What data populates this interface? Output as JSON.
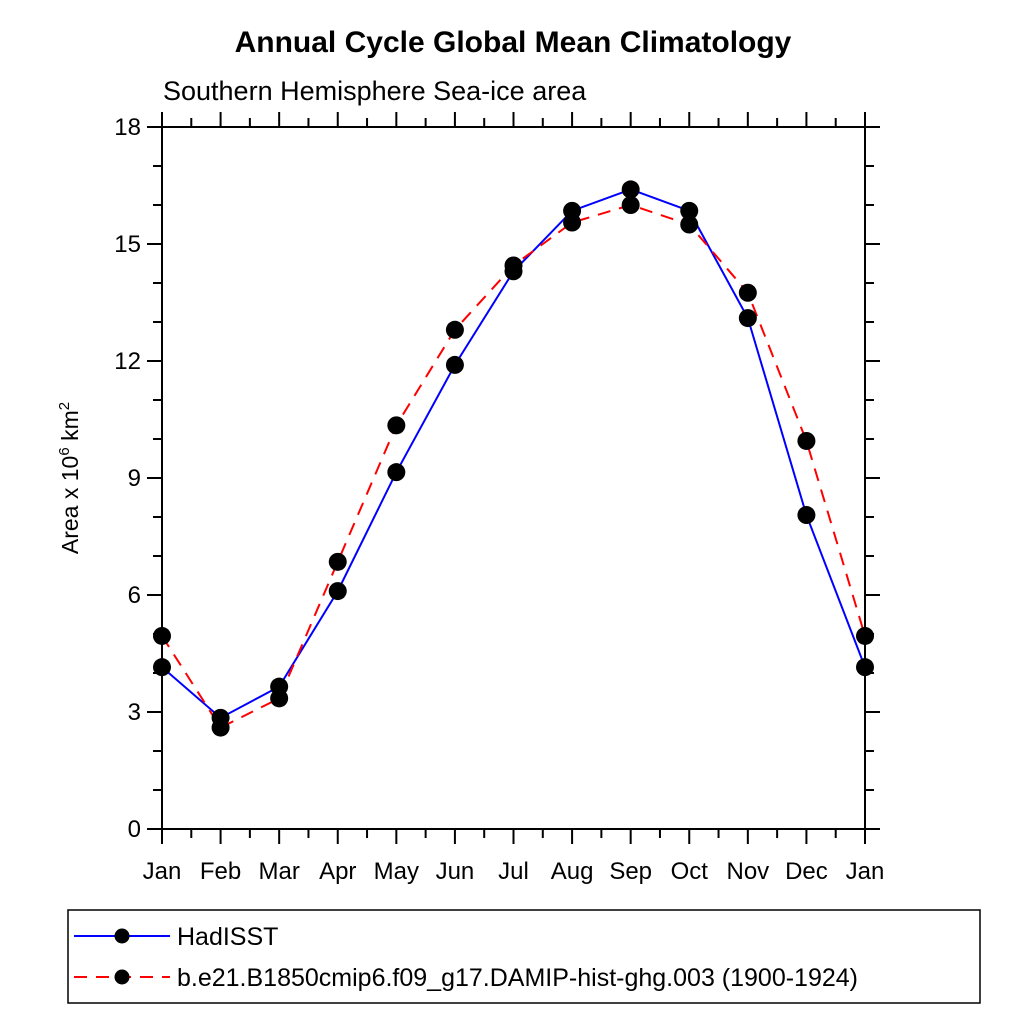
{
  "page": {
    "background": "#ffffff"
  },
  "chart_data": {
    "type": "line",
    "title": "Annual Cycle Global Mean Climatology",
    "subtitle": "Southern Hemisphere Sea-ice area",
    "xlabel": "",
    "ylabel": "Area x 10^6 km^2",
    "ylabel_rich": [
      {
        "t": "Area x 10"
      },
      {
        "t": "6",
        "sup": true
      },
      {
        "t": " km"
      },
      {
        "t": "2",
        "sup": true
      }
    ],
    "categories": [
      "Jan",
      "Feb",
      "Mar",
      "Apr",
      "May",
      "Jun",
      "Jul",
      "Aug",
      "Sep",
      "Oct",
      "Nov",
      "Dec",
      "Jan"
    ],
    "ylim": [
      0,
      18
    ],
    "ytick_major": 3,
    "ytick_minor": 1,
    "grid": false,
    "legend_position": "bottom-box",
    "axis_color": "#000000",
    "marker_color": "#000000",
    "series": [
      {
        "name": "HadISST",
        "color": "#0000ff",
        "line_style": "solid",
        "marker": "filled-circle",
        "values": [
          4.15,
          2.85,
          3.65,
          6.1,
          9.15,
          11.9,
          14.3,
          15.85,
          16.4,
          15.85,
          13.1,
          8.05,
          4.15
        ]
      },
      {
        "name": "b.e21.B1850cmip6.f09_g17.DAMIP-hist-ghg.003 (1900-1924)",
        "color": "#ff0000",
        "line_style": "dashed",
        "marker": "filled-circle",
        "values": [
          4.95,
          2.6,
          3.35,
          6.85,
          10.35,
          12.8,
          14.45,
          15.55,
          16.0,
          15.5,
          13.75,
          9.95,
          4.95
        ]
      }
    ]
  }
}
